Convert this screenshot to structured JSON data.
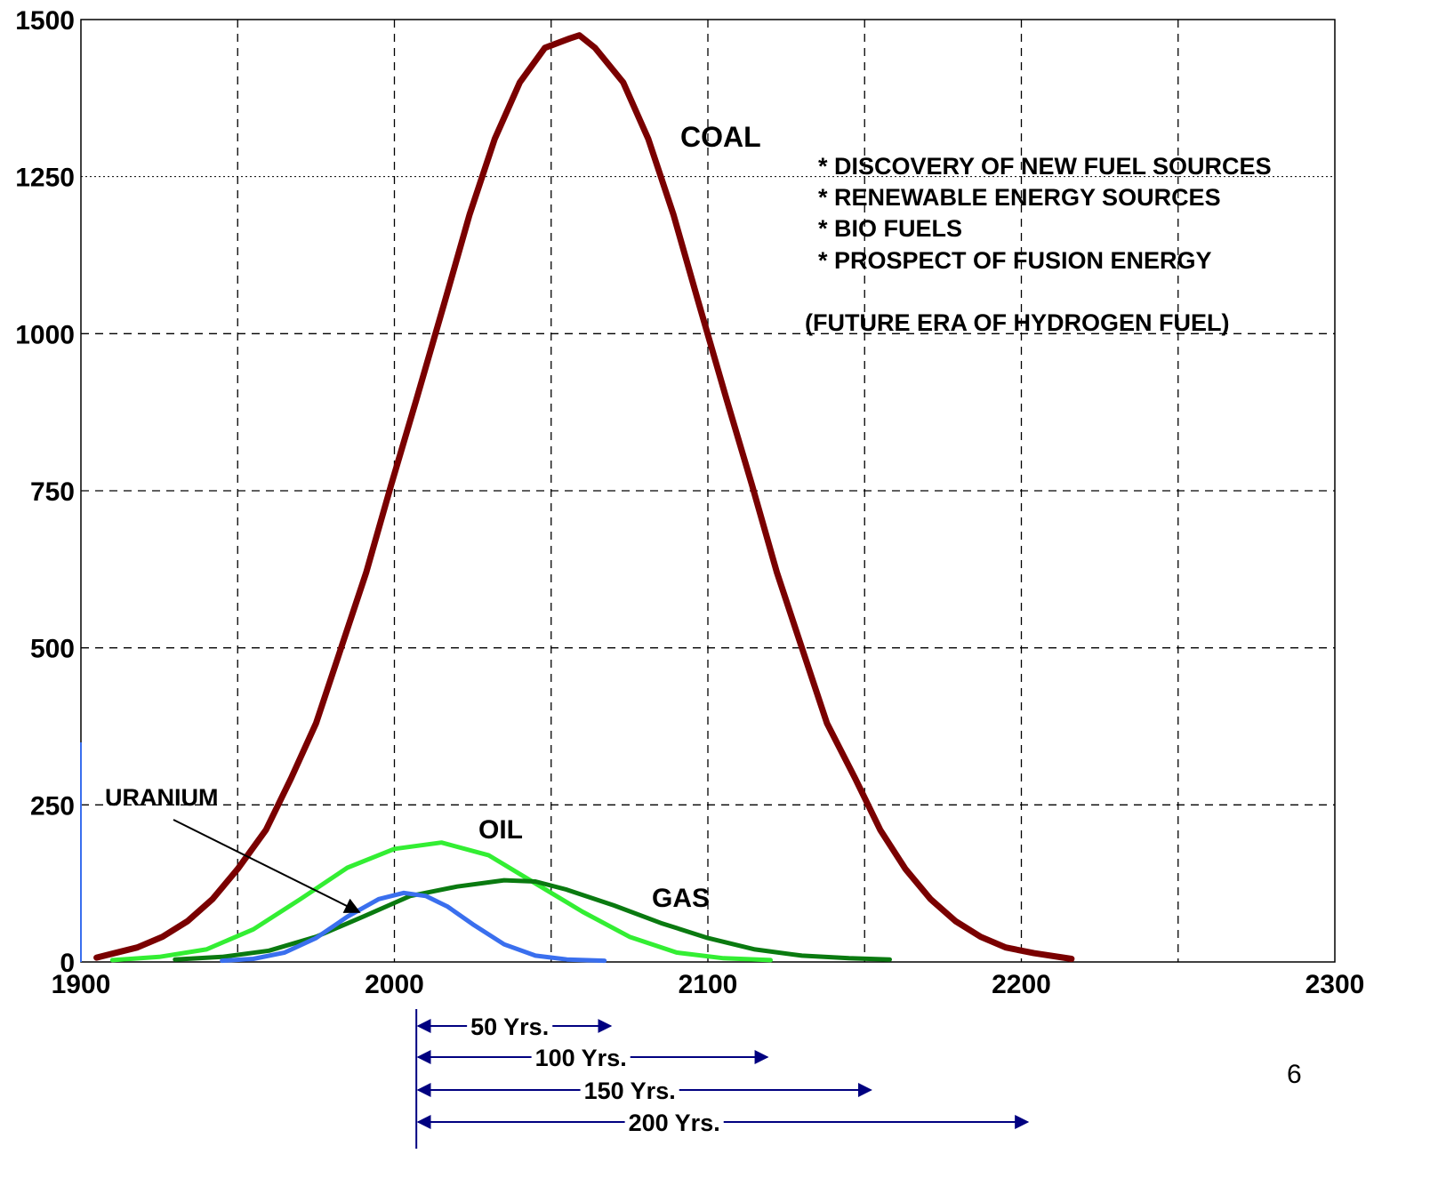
{
  "colors": {
    "coal": "#7a0000",
    "oil": "#33ee33",
    "gas": "#0a7a10",
    "uranium": "#3a6fee",
    "span_arrows": "#000080"
  },
  "chart_data": {
    "type": "line",
    "title": "",
    "xlabel": "",
    "ylabel": "",
    "xlim": [
      1900,
      2300
    ],
    "ylim": [
      0,
      1500
    ],
    "x_ticks": [
      1900,
      2000,
      2100,
      2200,
      2300
    ],
    "y_ticks": [
      0,
      250,
      500,
      750,
      1000,
      1250,
      1500
    ],
    "x_tick_labels": [
      "1900",
      "2000",
      "2100",
      "2200",
      "2300"
    ],
    "y_tick_labels": [
      "0",
      "250",
      "500",
      "750",
      "1000",
      "1250",
      "1500"
    ],
    "grid": true,
    "series": [
      {
        "name": "COAL",
        "color": "#7a0000",
        "x": [
          1905,
          1918,
          1926,
          1934,
          1942,
          1950,
          1959,
          1967,
          1975,
          1983,
          1991,
          1999,
          2007,
          2016,
          2024,
          2032,
          2040,
          2048,
          2056,
          2059,
          2064,
          2073,
          2081,
          2089,
          2097,
          2106,
          2114,
          2122,
          2130,
          2138,
          2147,
          2155,
          2163,
          2171,
          2179,
          2187,
          2195,
          2204,
          2216
        ],
        "y": [
          7,
          23,
          40,
          65,
          100,
          148,
          210,
          292,
          380,
          500,
          620,
          760,
          895,
          1050,
          1190,
          1310,
          1400,
          1455,
          1470,
          1475,
          1455,
          1400,
          1310,
          1190,
          1050,
          895,
          760,
          620,
          500,
          380,
          292,
          210,
          148,
          100,
          65,
          40,
          23,
          14,
          5
        ]
      },
      {
        "name": "OIL",
        "color": "#33ee33",
        "x": [
          1910,
          1925,
          1940,
          1955,
          1970,
          1985,
          2000,
          2015,
          2030,
          2045,
          2060,
          2075,
          2090,
          2105,
          2120
        ],
        "y": [
          3,
          8,
          20,
          52,
          100,
          150,
          180,
          190,
          170,
          125,
          80,
          40,
          15,
          6,
          3
        ]
      },
      {
        "name": "GAS",
        "color": "#0a7a10",
        "x": [
          1930,
          1945,
          1960,
          1975,
          1990,
          2005,
          2020,
          2035,
          2045,
          2055,
          2070,
          2085,
          2100,
          2115,
          2130,
          2145,
          2158
        ],
        "y": [
          4,
          8,
          18,
          40,
          72,
          105,
          120,
          130,
          128,
          115,
          90,
          62,
          38,
          20,
          10,
          6,
          4
        ]
      },
      {
        "name": "URANIUM",
        "color": "#3a6fee",
        "x": [
          1945,
          1955,
          1965,
          1975,
          1985,
          1995,
          2003,
          2010,
          2017,
          2025,
          2035,
          2045,
          2055,
          2067
        ],
        "y": [
          2,
          5,
          15,
          38,
          72,
          100,
          110,
          105,
          88,
          60,
          28,
          10,
          4,
          2
        ]
      }
    ],
    "annotations": {
      "notes": [
        "* DISCOVERY OF NEW FUEL SOURCES",
        "* RENEWABLE ENERGY SOURCES",
        "* BIO FUELS",
        "* PROSPECT OF FUSION ENERGY"
      ],
      "footnote": "(FUTURE ERA OF HYDROGEN FUEL)",
      "time_spans": [
        {
          "label": "50 Yrs.",
          "start": 2007,
          "end": 2069
        },
        {
          "label": "100 Yrs.",
          "start": 2007,
          "end": 2119
        },
        {
          "label": "150 Yrs.",
          "start": 2007,
          "end": 2152
        },
        {
          "label": "200 Yrs.",
          "start": 2007,
          "end": 2202
        }
      ]
    },
    "page_number": "6"
  }
}
